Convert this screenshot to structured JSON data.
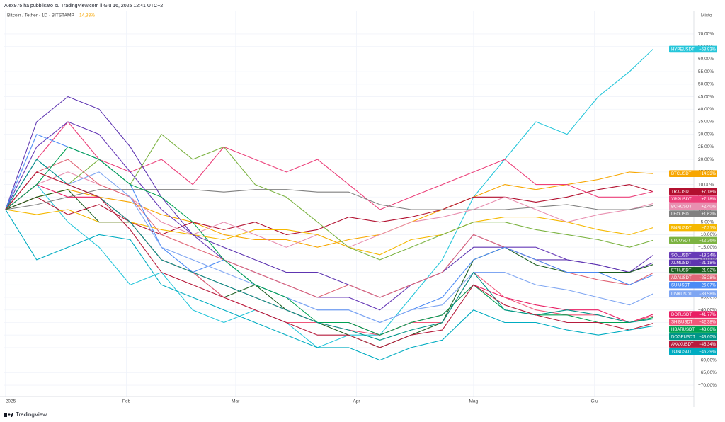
{
  "chart_data": {
    "type": "line",
    "title": "Alex975 ha pubblicato su TradingView.com il Giu 16, 2025 12:41 UTC+2",
    "subtitle": "Bitcoin / Tether · 1D · BITSTAMP",
    "subtitle_value": "14,33%",
    "y_axis_label": "Misto",
    "brand": "TradingView",
    "grid": true,
    "x": [
      0,
      8,
      16,
      24,
      32,
      40,
      48,
      56,
      64,
      72,
      80,
      88,
      96,
      104,
      112,
      120,
      128,
      136,
      144,
      152,
      160,
      166
    ],
    "xlim": [
      -0.5,
      176.5
    ],
    "xticks": [
      {
        "value": 0,
        "label": "2025"
      },
      {
        "value": 31,
        "label": "Feb"
      },
      {
        "value": 59,
        "label": "Mar"
      },
      {
        "value": 90,
        "label": "Apr"
      },
      {
        "value": 120,
        "label": "Mag"
      },
      {
        "value": 151,
        "label": "Giu"
      }
    ],
    "ylim": [
      -74.5,
      79.3
    ],
    "yticks": [
      {
        "value": 70,
        "label": "70,00%"
      },
      {
        "value": 65,
        "label": "65,00%"
      },
      {
        "value": 60,
        "label": "60,00%"
      },
      {
        "value": 55,
        "label": "55,00%"
      },
      {
        "value": 50,
        "label": "50,00%"
      },
      {
        "value": 45,
        "label": "45,00%"
      },
      {
        "value": 40,
        "label": "40,00%"
      },
      {
        "value": 35,
        "label": "35,00%"
      },
      {
        "value": 30,
        "label": "30,00%"
      },
      {
        "value": 25,
        "label": "25,00%"
      },
      {
        "value": 20,
        "label": "20,00%"
      },
      {
        "value": 15,
        "label": "15,00%"
      },
      {
        "value": 10,
        "label": "10,00%"
      },
      {
        "value": 5,
        "label": "5,00%"
      },
      {
        "value": 0,
        "label": "0,00%"
      },
      {
        "value": -5,
        "label": "−5,00%"
      },
      {
        "value": -10,
        "label": "−10,00%"
      },
      {
        "value": -15,
        "label": "−15,00%"
      },
      {
        "value": -20,
        "label": "−20,00%"
      },
      {
        "value": -25,
        "label": "−25,00%"
      },
      {
        "value": -30,
        "label": "−30,00%"
      },
      {
        "value": -35,
        "label": "−35,00%"
      },
      {
        "value": -40,
        "label": "−40,00%"
      },
      {
        "value": -45,
        "label": "−45,00%"
      },
      {
        "value": -50,
        "label": "−50,00%"
      },
      {
        "value": -55,
        "label": "−55,00%"
      },
      {
        "value": -60,
        "label": "−60,00%"
      },
      {
        "value": -65,
        "label": "−65,00%"
      },
      {
        "value": -70,
        "label": "−70,00%"
      }
    ],
    "series": [
      {
        "name": "HYPEUSDT",
        "color": "#26c6da",
        "values": [
          0,
          10,
          -5,
          -15,
          -30,
          -25,
          -40,
          -45,
          -40,
          -45,
          -55,
          -50,
          -50,
          -35,
          -20,
          5,
          20,
          35,
          30,
          45,
          55,
          63.93
        ],
        "value_labels": [
          null,
          null,
          null,
          null,
          null,
          null,
          null,
          null,
          null,
          null,
          null,
          null,
          null,
          null,
          null,
          null,
          null,
          null,
          null,
          null,
          null,
          "+63,93%"
        ]
      },
      {
        "name": "BTCUSDT",
        "color": "#f7a600",
        "values": [
          0,
          5,
          8,
          5,
          3,
          -2,
          -5,
          -10,
          -12,
          -12,
          -15,
          -12,
          -10,
          -5,
          0,
          5,
          10,
          8,
          10,
          12,
          15,
          14.33
        ],
        "value_labels": [
          null,
          null,
          null,
          null,
          null,
          null,
          null,
          null,
          null,
          null,
          null,
          null,
          null,
          null,
          null,
          null,
          null,
          null,
          null,
          null,
          null,
          "+14,33%"
        ]
      },
      {
        "name": "TRXUSDT",
        "color": "#b2102f",
        "values": [
          0,
          5,
          -2,
          2,
          -5,
          -10,
          -5,
          -8,
          -5,
          -10,
          -8,
          -3,
          -5,
          -3,
          0,
          5,
          5,
          3,
          5,
          8,
          10,
          7.18
        ],
        "value_labels": [
          null,
          null,
          null,
          null,
          null,
          null,
          null,
          null,
          null,
          null,
          null,
          null,
          null,
          null,
          null,
          null,
          null,
          null,
          null,
          null,
          null,
          "+7,18%"
        ]
      },
      {
        "name": "XRPUSDT",
        "color": "#ec407a",
        "values": [
          0,
          20,
          35,
          20,
          15,
          20,
          10,
          25,
          20,
          15,
          20,
          10,
          0,
          5,
          10,
          15,
          20,
          10,
          10,
          5,
          5,
          7.18
        ],
        "value_labels": [
          null,
          null,
          null,
          null,
          null,
          null,
          null,
          null,
          null,
          null,
          null,
          null,
          null,
          null,
          null,
          null,
          null,
          null,
          null,
          null,
          null,
          "+7,18%"
        ]
      },
      {
        "name": "BCHUSDT",
        "color": "#e88fb0",
        "values": [
          0,
          10,
          15,
          10,
          5,
          -5,
          -10,
          -5,
          -10,
          -15,
          -10,
          -15,
          -10,
          -5,
          -3,
          0,
          5,
          0,
          -5,
          -2,
          0,
          2.4
        ],
        "value_labels": [
          null,
          null,
          null,
          null,
          null,
          null,
          null,
          null,
          null,
          null,
          null,
          null,
          null,
          null,
          null,
          null,
          null,
          null,
          null,
          null,
          null,
          "+2,40%"
        ]
      },
      {
        "name": "LEOUSD",
        "color": "#808080",
        "values": [
          0,
          2,
          5,
          8,
          8,
          8,
          8,
          7,
          8,
          8,
          7,
          7,
          2,
          0,
          0,
          0,
          0,
          1,
          2,
          0,
          0,
          1.62
        ],
        "value_labels": [
          null,
          null,
          null,
          null,
          null,
          null,
          null,
          null,
          null,
          null,
          null,
          null,
          null,
          null,
          null,
          null,
          null,
          null,
          null,
          null,
          null,
          "+1,62%"
        ]
      },
      {
        "name": "BNBUSDT",
        "color": "#f5b800",
        "values": [
          0,
          -2,
          0,
          -5,
          -5,
          -8,
          -10,
          -12,
          -8,
          -8,
          -10,
          -15,
          -18,
          -12,
          -10,
          -5,
          -3,
          -3,
          -5,
          -8,
          -10,
          -7.21
        ],
        "value_labels": [
          null,
          null,
          null,
          null,
          null,
          null,
          null,
          null,
          null,
          null,
          null,
          null,
          null,
          null,
          null,
          null,
          null,
          null,
          null,
          null,
          null,
          "−7,21%"
        ]
      },
      {
        "name": "LTCUSDT",
        "color": "#7cb342",
        "values": [
          0,
          15,
          10,
          20,
          10,
          30,
          20,
          25,
          10,
          5,
          -5,
          -15,
          -20,
          -15,
          -10,
          -5,
          -5,
          -8,
          -10,
          -12,
          -15,
          -12.26
        ],
        "value_labels": [
          null,
          null,
          null,
          null,
          null,
          null,
          null,
          null,
          null,
          null,
          null,
          null,
          null,
          null,
          null,
          null,
          null,
          null,
          null,
          null,
          null,
          "−12,26%"
        ]
      },
      {
        "name": "SOLUSDT",
        "color": "#673ab7",
        "values": [
          0,
          25,
          35,
          30,
          15,
          0,
          -10,
          -20,
          -25,
          -30,
          -35,
          -35,
          -40,
          -30,
          -25,
          -10,
          -15,
          -15,
          -20,
          -22,
          -25,
          -18.24
        ],
        "value_labels": [
          null,
          null,
          null,
          null,
          null,
          null,
          null,
          null,
          null,
          null,
          null,
          null,
          null,
          null,
          null,
          null,
          null,
          null,
          null,
          null,
          null,
          "−18,24%"
        ]
      },
      {
        "name": "XLMUSDT",
        "color": "#5e35b1",
        "values": [
          0,
          35,
          45,
          40,
          25,
          5,
          -10,
          -15,
          -20,
          -25,
          -25,
          -30,
          -35,
          -30,
          -25,
          -15,
          -15,
          -20,
          -20,
          -22,
          -25,
          -21.18
        ],
        "value_labels": [
          null,
          null,
          null,
          null,
          null,
          null,
          null,
          null,
          null,
          null,
          null,
          null,
          null,
          null,
          null,
          null,
          null,
          null,
          null,
          null,
          null,
          "−21,18%"
        ]
      },
      {
        "name": "ETHUSDT",
        "color": "#1b5e20",
        "values": [
          0,
          5,
          8,
          -5,
          -5,
          -20,
          -25,
          -35,
          -30,
          -40,
          -45,
          -50,
          -55,
          -50,
          -45,
          -20,
          -15,
          -22,
          -25,
          -25,
          -25,
          -21.92
        ],
        "value_labels": [
          null,
          null,
          null,
          null,
          null,
          null,
          null,
          null,
          null,
          null,
          null,
          null,
          null,
          null,
          null,
          null,
          null,
          null,
          null,
          null,
          null,
          "−21,92%"
        ]
      },
      {
        "name": "ADAUSDT",
        "color": "#e06677",
        "values": [
          0,
          15,
          20,
          10,
          5,
          -10,
          -15,
          -20,
          -25,
          -30,
          -35,
          -30,
          -35,
          -30,
          -25,
          -10,
          -15,
          -20,
          -25,
          -28,
          -30,
          -25.28
        ],
        "value_labels": [
          null,
          null,
          null,
          null,
          null,
          null,
          null,
          null,
          null,
          null,
          null,
          null,
          null,
          null,
          null,
          null,
          null,
          null,
          null,
          null,
          null,
          "−25,28%"
        ]
      },
      {
        "name": "SUIUSDT",
        "color": "#4c8bf5",
        "values": [
          0,
          30,
          25,
          20,
          10,
          -15,
          -25,
          -20,
          -30,
          -35,
          -40,
          -40,
          -45,
          -40,
          -35,
          -20,
          -15,
          -20,
          -25,
          -25,
          -30,
          -26.07
        ],
        "value_labels": [
          null,
          null,
          null,
          null,
          null,
          null,
          null,
          null,
          null,
          null,
          null,
          null,
          null,
          null,
          null,
          null,
          null,
          null,
          null,
          null,
          null,
          "−26,07%"
        ]
      },
      {
        "name": "LINKUSDT",
        "color": "#7fa6f2",
        "values": [
          0,
          20,
          10,
          15,
          5,
          -15,
          -20,
          -25,
          -30,
          -35,
          -40,
          -40,
          -45,
          -40,
          -38,
          -25,
          -25,
          -30,
          -32,
          -35,
          -38,
          -33.58
        ],
        "value_labels": [
          null,
          null,
          null,
          null,
          null,
          null,
          null,
          null,
          null,
          null,
          null,
          null,
          null,
          null,
          null,
          null,
          null,
          null,
          null,
          null,
          null,
          "−33,58%"
        ]
      },
      {
        "name": "DOTUSDT",
        "color": "#e91e63",
        "values": [
          0,
          10,
          5,
          5,
          -5,
          -20,
          -25,
          -30,
          -35,
          -40,
          -45,
          -45,
          -50,
          -45,
          -42,
          -30,
          -35,
          -38,
          -40,
          -40,
          -45,
          -41.77
        ],
        "value_labels": [
          null,
          null,
          null,
          null,
          null,
          null,
          null,
          null,
          null,
          null,
          null,
          null,
          null,
          null,
          null,
          null,
          null,
          null,
          null,
          null,
          null,
          "−41,77%"
        ]
      },
      {
        "name": "SHIBUSDT",
        "color": "#f0577a",
        "values": [
          0,
          15,
          10,
          5,
          -5,
          -20,
          -25,
          -35,
          -40,
          -45,
          -45,
          -48,
          -50,
          -45,
          -45,
          -25,
          -35,
          -40,
          -42,
          -42,
          -45,
          -42.38
        ],
        "value_labels": [
          null,
          null,
          null,
          null,
          null,
          null,
          null,
          null,
          null,
          null,
          null,
          null,
          null,
          null,
          null,
          null,
          null,
          null,
          null,
          null,
          null,
          "−42,38%"
        ]
      },
      {
        "name": "HBARUSDT",
        "color": "#00a152",
        "values": [
          0,
          10,
          25,
          20,
          10,
          5,
          -5,
          -20,
          -30,
          -35,
          -45,
          -45,
          -50,
          -45,
          -42,
          -30,
          -40,
          -42,
          -42,
          -45,
          -45,
          -43.06
        ],
        "value_labels": [
          null,
          null,
          null,
          null,
          null,
          null,
          null,
          null,
          null,
          null,
          null,
          null,
          null,
          null,
          null,
          null,
          null,
          null,
          null,
          null,
          null,
          "−43,06%"
        ]
      },
      {
        "name": "DOGEUSDT",
        "color": "#009688",
        "values": [
          0,
          20,
          10,
          5,
          -5,
          -20,
          -25,
          -30,
          -35,
          -40,
          -45,
          -48,
          -52,
          -48,
          -45,
          -25,
          -40,
          -42,
          -40,
          -42,
          -45,
          -43.6
        ],
        "value_labels": [
          null,
          null,
          null,
          null,
          null,
          null,
          null,
          null,
          null,
          null,
          null,
          null,
          null,
          null,
          null,
          null,
          null,
          null,
          null,
          null,
          null,
          "−43,60%"
        ]
      },
      {
        "name": "AVAXUSDT",
        "color": "#b71c3c",
        "values": [
          0,
          15,
          10,
          5,
          -8,
          -25,
          -30,
          -35,
          -40,
          -45,
          -50,
          -50,
          -55,
          -50,
          -48,
          -30,
          -38,
          -42,
          -45,
          -45,
          -48,
          -45.34
        ],
        "value_labels": [
          null,
          null,
          null,
          null,
          null,
          null,
          null,
          null,
          null,
          null,
          null,
          null,
          null,
          null,
          null,
          null,
          null,
          null,
          null,
          null,
          null,
          "−45,34%"
        ]
      },
      {
        "name": "TONUSDT",
        "color": "#00acc1",
        "values": [
          0,
          -20,
          -15,
          -10,
          -12,
          -30,
          -35,
          -40,
          -45,
          -50,
          -55,
          -55,
          -60,
          -55,
          -52,
          -40,
          -45,
          -45,
          -48,
          -50,
          -48,
          -46.39
        ],
        "value_labels": [
          null,
          null,
          null,
          null,
          null,
          null,
          null,
          null,
          null,
          null,
          null,
          null,
          null,
          null,
          null,
          null,
          null,
          null,
          null,
          null,
          null,
          "−46,39%"
        ]
      }
    ]
  }
}
